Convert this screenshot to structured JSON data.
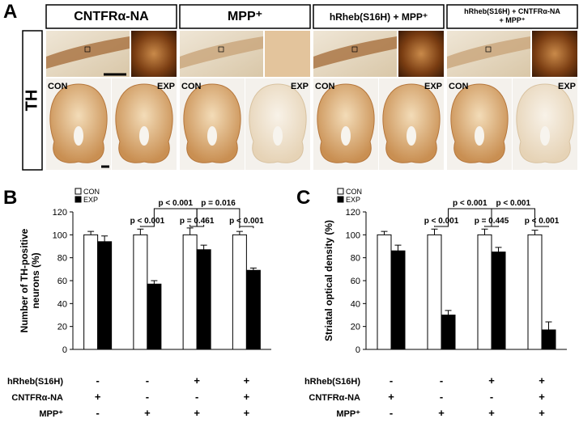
{
  "panel_labels": [
    "A",
    "B",
    "C"
  ],
  "panel_a": {
    "columns": [
      [
        "CNTFRα-NA"
      ],
      [
        "MPP⁺"
      ],
      [
        "hRheb(S16H) + MPP⁺"
      ],
      [
        "hRheb(S16H) + CNTFRα-NA",
        "+ MPP⁺"
      ]
    ],
    "row_label": "TH",
    "image_labels": [
      "CON",
      "EXP"
    ]
  },
  "chart_data": [
    {
      "type": "bar",
      "ylabel": [
        "Number of TH-positive",
        "neurons (%)"
      ],
      "ylim": [
        0,
        120
      ],
      "yticks": [
        0,
        20,
        40,
        60,
        80,
        100,
        120
      ],
      "series": [
        {
          "name": "CON",
          "color": "#ffffff",
          "values": [
            100,
            100,
            100,
            100
          ],
          "errors": [
            3,
            5,
            6,
            3
          ]
        },
        {
          "name": "EXP",
          "color": "#000000",
          "values": [
            94,
            57,
            87,
            69
          ],
          "errors": [
            5,
            3,
            4,
            2
          ]
        }
      ],
      "annotations": [
        "p < 0.001",
        "p = 0.016",
        "p < 0.001",
        "p = 0.461",
        "p < 0.001"
      ],
      "conditions": [
        {
          "name": "hRheb(S16H)",
          "values": [
            "-",
            "-",
            "+",
            "+"
          ]
        },
        {
          "name": "CNTFRα-NA",
          "values": [
            "+",
            "-",
            "-",
            "+"
          ]
        },
        {
          "name": "MPP⁺",
          "values": [
            "-",
            "+",
            "+",
            "+"
          ]
        }
      ]
    },
    {
      "type": "bar",
      "ylabel": [
        "Striatal optical density (%)"
      ],
      "ylim": [
        0,
        120
      ],
      "yticks": [
        0,
        20,
        40,
        60,
        80,
        100,
        120
      ],
      "series": [
        {
          "name": "CON",
          "color": "#ffffff",
          "values": [
            100,
            100,
            100,
            100
          ],
          "errors": [
            3,
            5,
            5,
            4
          ]
        },
        {
          "name": "EXP",
          "color": "#000000",
          "values": [
            86,
            30,
            85,
            17
          ],
          "errors": [
            5,
            4,
            4,
            7
          ]
        }
      ],
      "annotations": [
        "p < 0.001",
        "p < 0.001",
        "p < 0.001",
        "p = 0.445",
        "p < 0.001"
      ],
      "conditions": [
        {
          "name": "hRheb(S16H)",
          "values": [
            "-",
            "-",
            "+",
            "+"
          ]
        },
        {
          "name": "CNTFRα-NA",
          "values": [
            "+",
            "-",
            "-",
            "+"
          ]
        },
        {
          "name": "MPP⁺",
          "values": [
            "-",
            "+",
            "+",
            "+"
          ]
        }
      ]
    }
  ]
}
